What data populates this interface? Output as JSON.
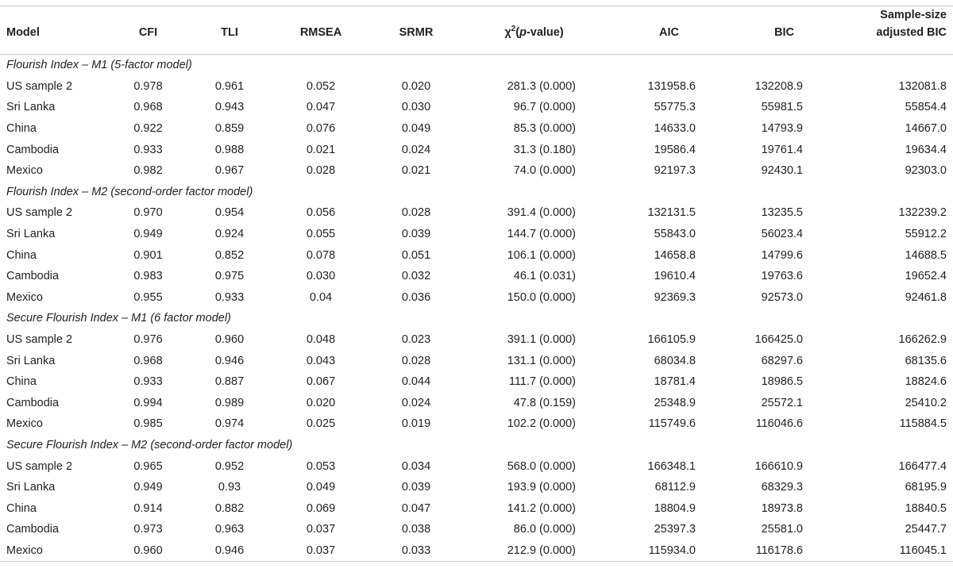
{
  "table": {
    "headers": {
      "model": "Model",
      "cfi": "CFI",
      "tli": "TLI",
      "rmsea": "RMSEA",
      "srmr": "SRMR",
      "chi_symbol": "χ",
      "chi_sup": "2",
      "chi_open": "(",
      "chi_p": "p",
      "chi_rest": "-value)",
      "aic": "AIC",
      "bic": "BIC",
      "ssbic_line1": "Sample-size",
      "ssbic_line2": "adjusted BIC"
    },
    "sections": [
      {
        "title": "Flourish Index – M1 (5-factor model)",
        "rows": [
          [
            "US sample 2",
            "0.978",
            "0.961",
            "0.052",
            "0.020",
            "281.3 (0.000)",
            "131958.6",
            "132208.9",
            "132081.8"
          ],
          [
            "Sri Lanka",
            "0.968",
            "0.943",
            "0.047",
            "0.030",
            "96.7 (0.000)",
            "55775.3",
            "55981.5",
            "55854.4"
          ],
          [
            "China",
            "0.922",
            "0.859",
            "0.076",
            "0.049",
            "85.3 (0.000)",
            "14633.0",
            "14793.9",
            "14667.0"
          ],
          [
            "Cambodia",
            "0.933",
            "0.988",
            "0.021",
            "0.024",
            "31.3 (0.180)",
            "19586.4",
            "19761.4",
            "19634.4"
          ],
          [
            "Mexico",
            "0.982",
            "0.967",
            "0.028",
            "0.021",
            "74.0 (0.000)",
            "92197.3",
            "92430.1",
            "92303.0"
          ]
        ]
      },
      {
        "title": "Flourish Index – M2 (second-order factor model)",
        "rows": [
          [
            "US sample 2",
            "0.970",
            "0.954",
            "0.056",
            "0.028",
            "391.4 (0.000)",
            "132131.5",
            "13235.5",
            "132239.2"
          ],
          [
            "Sri Lanka",
            "0.949",
            "0.924",
            "0.055",
            "0.039",
            "144.7 (0.000)",
            "55843.0",
            "56023.4",
            "55912.2"
          ],
          [
            "China",
            "0.901",
            "0.852",
            "0.078",
            "0.051",
            "106.1 (0.000)",
            "14658.8",
            "14799.6",
            "14688.5"
          ],
          [
            "Cambodia",
            "0.983",
            "0.975",
            "0.030",
            "0.032",
            "46.1 (0.031)",
            "19610.4",
            "19763.6",
            "19652.4"
          ],
          [
            "Mexico",
            "0.955",
            "0.933",
            "0.04",
            "0.036",
            "150.0 (0.000)",
            "92369.3",
            "92573.0",
            "92461.8"
          ]
        ]
      },
      {
        "title": "Secure Flourish Index – M1 (6 factor model)",
        "rows": [
          [
            "US sample 2",
            "0.976",
            "0.960",
            "0.048",
            "0.023",
            "391.1 (0.000)",
            "166105.9",
            "166425.0",
            "166262.9"
          ],
          [
            "Sri Lanka",
            "0.968",
            "0.946",
            "0.043",
            "0.028",
            "131.1 (0.000)",
            "68034.8",
            "68297.6",
            "68135.6"
          ],
          [
            "China",
            "0.933",
            "0.887",
            "0.067",
            "0.044",
            "111.7 (0.000)",
            "18781.4",
            "18986.5",
            "18824.6"
          ],
          [
            "Cambodia",
            "0.994",
            "0.989",
            "0.020",
            "0.024",
            "47.8 (0.159)",
            "25348.9",
            "25572.1",
            "25410.2"
          ],
          [
            "Mexico",
            "0.985",
            "0.974",
            "0.025",
            "0.019",
            "102.2 (0.000)",
            "115749.6",
            "116046.6",
            "115884.5"
          ]
        ]
      },
      {
        "title": "Secure Flourish Index – M2 (second-order factor model)",
        "rows": [
          [
            "US sample 2",
            "0.965",
            "0.952",
            "0.053",
            "0.034",
            "568.0 (0.000)",
            "166348.1",
            "166610.9",
            "166477.4"
          ],
          [
            "Sri Lanka",
            "0.949",
            "0.93",
            "0.049",
            "0.039",
            "193.9 (0.000)",
            "68112.9",
            "68329.3",
            "68195.9"
          ],
          [
            "China",
            "0.914",
            "0.882",
            "0.069",
            "0.047",
            "141.2 (0.000)",
            "18804.9",
            "18973.8",
            "18840.5"
          ],
          [
            "Cambodia",
            "0.973",
            "0.963",
            "0.037",
            "0.038",
            "86.0 (0.000)",
            "25397.3",
            "25581.0",
            "25447.7"
          ],
          [
            "Mexico",
            "0.960",
            "0.946",
            "0.037",
            "0.033",
            "212.9 (0.000)",
            "115934.0",
            "116178.6",
            "116045.1"
          ]
        ]
      }
    ]
  }
}
